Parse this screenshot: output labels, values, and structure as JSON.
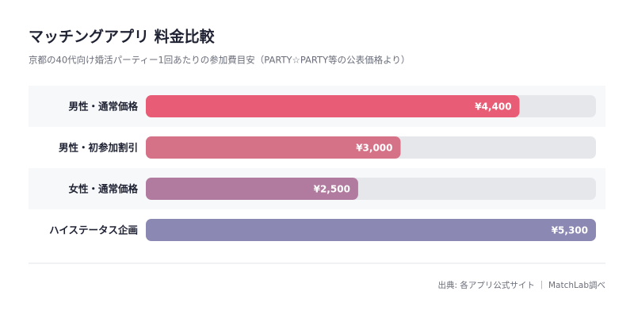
{
  "chart_data": {
    "type": "bar",
    "title": "マッチングアプリ 料金比較",
    "subtitle": "京都の40代向け婚活パーティー1回あたりの参加費目安（PARTY☆PARTY等の公表価格より）",
    "categories": [
      "男性・通常価格",
      "男性・初参加割引",
      "女性・通常価格",
      "ハイステータス企画"
    ],
    "values": [
      4400,
      3000,
      2500,
      5300
    ],
    "value_labels": [
      "¥4,400",
      "¥3,000",
      "¥2,500",
      "¥5,300"
    ],
    "colors": [
      "#e85d75",
      "#d57287",
      "#b17b9f",
      "#8b88b4"
    ],
    "xlim": [
      0,
      5300
    ],
    "source": "出典: 各アプリ公式サイト ｜ MatchLab調べ"
  }
}
